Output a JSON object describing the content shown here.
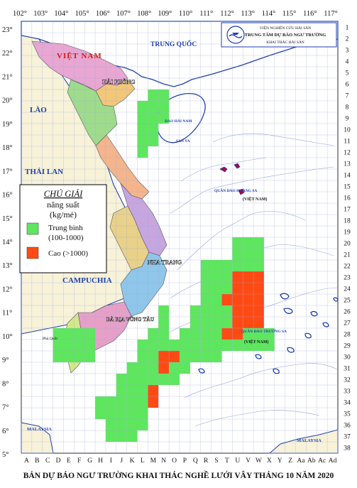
{
  "title": "BẢN DỰ BÁO NGƯ TRƯỜNG KHAI THÁC NGHỀ LƯỚI VÂY THÁNG 10 NĂM 2020",
  "institute": {
    "line1": "VIỆN NGHIÊN CỨU HẢI SẢN",
    "line2": "TRUNG TÂM DỰ BÁO NGƯ TRƯỜNG",
    "line3": "KHAI THÁC HẢI SẢN"
  },
  "legend": {
    "title": "CHÚ GIẢI",
    "unit_line1": "năng suất",
    "unit_line2": "(kg/mẻ)",
    "items": [
      {
        "label1": "Trung bình",
        "label2": "(100-1000)",
        "color": "#5ee65e"
      },
      {
        "label1": "Cao (>1000)",
        "label2": "",
        "color": "#ff4a14"
      }
    ]
  },
  "longitudes": [
    "102°",
    "103°",
    "104°",
    "105°",
    "106°",
    "107°",
    "108°",
    "109°",
    "110°",
    "111°",
    "112°",
    "113°",
    "114°",
    "115°",
    "116°",
    "117°"
  ],
  "latitudes": [
    "23°",
    "22°",
    "21°",
    "20°",
    "19°",
    "18°",
    "17°",
    "16°",
    "15°",
    "14°",
    "13°",
    "12°",
    "11°",
    "10°",
    "9°",
    "8°",
    "7°",
    "6°",
    "5°"
  ],
  "column_labels": [
    "A",
    "B",
    "C",
    "D",
    "E",
    "F",
    "G",
    "H",
    "I",
    "J",
    "K",
    "L",
    "M",
    "N",
    "O",
    "P",
    "Q",
    "R",
    "S",
    "T",
    "U",
    "V",
    "W",
    "X",
    "Y",
    "Z",
    "Aa",
    "Ab",
    "Ac",
    "Ad"
  ],
  "row_labels": [
    "1",
    "2",
    "3",
    "4",
    "5",
    "6",
    "7",
    "8",
    "9",
    "10",
    "11",
    "12",
    "13",
    "14",
    "15",
    "16",
    "17",
    "18",
    "19",
    "20",
    "21",
    "22",
    "23",
    "24",
    "25",
    "26",
    "27",
    "28",
    "29",
    "30",
    "31",
    "32",
    "33",
    "34",
    "35",
    "36",
    "37",
    "38"
  ],
  "countries": {
    "china": "TRUNG QUỐC",
    "vietnam": "VIỆT NAM",
    "laos": "LÀO",
    "thailand": "THÁI LAN",
    "cambodia": "CAMPUCHIA",
    "malaysia_w": "MALAYSIA",
    "malaysia_e": "MALAYSIA"
  },
  "places": {
    "haiphong": "HẢI PHÒNG",
    "nhatrang": "NHA TRANG",
    "baria": "BÀ RỊA VŨNG TÀU",
    "hainan": "ĐẢO HẢI NAM",
    "sanya": "SAN YA",
    "hoangsa": "QUẦN ĐẢO HOÀNG SA",
    "hoangsa_vn": "(VIỆT NAM)",
    "truongsa": "QUẦN ĐẢO TRƯỜNG SA",
    "truongsa_vn": "(VIỆT NAM)",
    "phuquoc": "Phú Quốc"
  },
  "cells": {
    "medium": [
      [
        12,
        7
      ],
      [
        13,
        7
      ],
      [
        11,
        8
      ],
      [
        12,
        8
      ],
      [
        13,
        8
      ],
      [
        11,
        9
      ],
      [
        12,
        9
      ],
      [
        13,
        9
      ],
      [
        11,
        10
      ],
      [
        12,
        10
      ],
      [
        11,
        11
      ],
      [
        12,
        11
      ],
      [
        11,
        12
      ],
      [
        20,
        20
      ],
      [
        21,
        20
      ],
      [
        22,
        20
      ],
      [
        20,
        21
      ],
      [
        21,
        21
      ],
      [
        22,
        21
      ],
      [
        17,
        22
      ],
      [
        18,
        22
      ],
      [
        19,
        22
      ],
      [
        20,
        22
      ],
      [
        21,
        22
      ],
      [
        22,
        22
      ],
      [
        17,
        23
      ],
      [
        18,
        23
      ],
      [
        19,
        23
      ],
      [
        17,
        24
      ],
      [
        18,
        24
      ],
      [
        19,
        24
      ],
      [
        17,
        25
      ],
      [
        18,
        25
      ],
      [
        19,
        25
      ],
      [
        13,
        26
      ],
      [
        16,
        26
      ],
      [
        17,
        26
      ],
      [
        18,
        26
      ],
      [
        19,
        26
      ],
      [
        20,
        26
      ],
      [
        13,
        27
      ],
      [
        16,
        27
      ],
      [
        17,
        27
      ],
      [
        18,
        27
      ],
      [
        19,
        27
      ],
      [
        20,
        27
      ],
      [
        3,
        28
      ],
      [
        4,
        28
      ],
      [
        5,
        28
      ],
      [
        6,
        28
      ],
      [
        12,
        28
      ],
      [
        13,
        28
      ],
      [
        15,
        28
      ],
      [
        16,
        28
      ],
      [
        17,
        28
      ],
      [
        18,
        28
      ],
      [
        19,
        28
      ],
      [
        20,
        28
      ],
      [
        21,
        28
      ],
      [
        22,
        28
      ],
      [
        23,
        28
      ],
      [
        3,
        29
      ],
      [
        4,
        29
      ],
      [
        5,
        29
      ],
      [
        6,
        29
      ],
      [
        11,
        29
      ],
      [
        12,
        29
      ],
      [
        13,
        29
      ],
      [
        14,
        29
      ],
      [
        15,
        29
      ],
      [
        16,
        29
      ],
      [
        17,
        29
      ],
      [
        18,
        29
      ],
      [
        19,
        29
      ],
      [
        20,
        29
      ],
      [
        21,
        29
      ],
      [
        22,
        29
      ],
      [
        23,
        29
      ],
      [
        3,
        30
      ],
      [
        4,
        30
      ],
      [
        5,
        30
      ],
      [
        6,
        30
      ],
      [
        11,
        30
      ],
      [
        12,
        30
      ],
      [
        13,
        30
      ],
      [
        14,
        30
      ],
      [
        15,
        30
      ],
      [
        16,
        30
      ],
      [
        17,
        30
      ],
      [
        18,
        30
      ],
      [
        10,
        31
      ],
      [
        11,
        31
      ],
      [
        12,
        31
      ],
      [
        13,
        31
      ],
      [
        14,
        31
      ],
      [
        15,
        31
      ],
      [
        9,
        32
      ],
      [
        10,
        32
      ],
      [
        11,
        32
      ],
      [
        12,
        32
      ],
      [
        13,
        32
      ],
      [
        14,
        32
      ],
      [
        9,
        33
      ],
      [
        10,
        33
      ],
      [
        11,
        33
      ],
      [
        12,
        33
      ],
      [
        7,
        34
      ],
      [
        8,
        34
      ],
      [
        9,
        34
      ],
      [
        10,
        34
      ],
      [
        11,
        34
      ],
      [
        7,
        35
      ],
      [
        8,
        35
      ],
      [
        9,
        35
      ],
      [
        10,
        35
      ],
      [
        11,
        35
      ],
      [
        8,
        36
      ],
      [
        9,
        36
      ],
      [
        10,
        36
      ],
      [
        11,
        36
      ],
      [
        8,
        37
      ],
      [
        9,
        37
      ],
      [
        10,
        37
      ]
    ],
    "high": [
      [
        20,
        23
      ],
      [
        21,
        23
      ],
      [
        22,
        23
      ],
      [
        20,
        24
      ],
      [
        21,
        24
      ],
      [
        22,
        24
      ],
      [
        19,
        25
      ],
      [
        20,
        25
      ],
      [
        21,
        25
      ],
      [
        22,
        25
      ],
      [
        20,
        26
      ],
      [
        21,
        26
      ],
      [
        22,
        26
      ],
      [
        20,
        27
      ],
      [
        21,
        27
      ],
      [
        22,
        27
      ],
      [
        19,
        28
      ],
      [
        20,
        28
      ],
      [
        13,
        30
      ],
      [
        14,
        30
      ],
      [
        13,
        31
      ],
      [
        12,
        33
      ],
      [
        12,
        34
      ]
    ]
  }
}
